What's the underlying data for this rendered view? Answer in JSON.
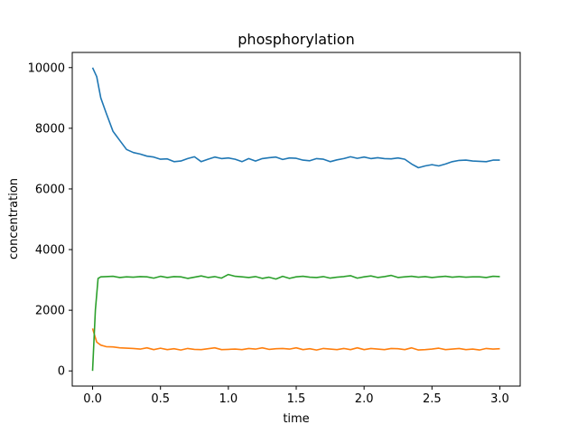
{
  "chart_data": {
    "type": "line",
    "title": "phosphorylation",
    "xlabel": "time",
    "ylabel": "concentration",
    "xlim": [
      -0.15,
      3.15
    ],
    "ylim": [
      -500,
      10500
    ],
    "xticks": [
      0.0,
      0.5,
      1.0,
      1.5,
      2.0,
      2.5,
      3.0
    ],
    "xtick_labels": [
      "0.0",
      "0.5",
      "1.0",
      "1.5",
      "2.0",
      "2.5",
      "3.0"
    ],
    "yticks": [
      0,
      2000,
      4000,
      6000,
      8000,
      10000
    ],
    "ytick_labels": [
      "0",
      "2000",
      "4000",
      "6000",
      "8000",
      "10000"
    ],
    "grid": false,
    "series": [
      {
        "color": "#1f77b4",
        "x": [
          0.0,
          0.03,
          0.06,
          0.1,
          0.15,
          0.2,
          0.25,
          0.3,
          0.35,
          0.4,
          0.45,
          0.5,
          0.55,
          0.6,
          0.65,
          0.7,
          0.75,
          0.8,
          0.85,
          0.9,
          0.95,
          1.0,
          1.05,
          1.1,
          1.15,
          1.2,
          1.25,
          1.3,
          1.35,
          1.4,
          1.45,
          1.5,
          1.55,
          1.6,
          1.65,
          1.7,
          1.75,
          1.8,
          1.85,
          1.9,
          1.95,
          2.0,
          2.05,
          2.1,
          2.15,
          2.2,
          2.25,
          2.3,
          2.35,
          2.4,
          2.45,
          2.5,
          2.55,
          2.6,
          2.65,
          2.7,
          2.75,
          2.8,
          2.85,
          2.9,
          2.95,
          3.0
        ],
        "y": [
          10000,
          9700,
          9000,
          8500,
          7900,
          7600,
          7300,
          7200,
          7150,
          7080,
          7050,
          6980,
          6990,
          6900,
          6920,
          7000,
          7060,
          6900,
          6980,
          7050,
          7000,
          7020,
          6980,
          6900,
          7000,
          6920,
          7000,
          7030,
          7050,
          6970,
          7020,
          7010,
          6950,
          6930,
          7000,
          6980,
          6900,
          6960,
          7000,
          7060,
          7010,
          7050,
          7000,
          7030,
          7000,
          6990,
          7020,
          6980,
          6820,
          6700,
          6760,
          6800,
          6760,
          6820,
          6900,
          6940,
          6950,
          6920,
          6910,
          6900,
          6950,
          6950
        ]
      },
      {
        "color": "#ff7f0e",
        "x": [
          0.0,
          0.03,
          0.06,
          0.1,
          0.15,
          0.2,
          0.25,
          0.3,
          0.35,
          0.4,
          0.45,
          0.5,
          0.55,
          0.6,
          0.65,
          0.7,
          0.75,
          0.8,
          0.85,
          0.9,
          0.95,
          1.0,
          1.05,
          1.1,
          1.15,
          1.2,
          1.25,
          1.3,
          1.35,
          1.4,
          1.45,
          1.5,
          1.55,
          1.6,
          1.65,
          1.7,
          1.75,
          1.8,
          1.85,
          1.9,
          1.95,
          2.0,
          2.05,
          2.1,
          2.15,
          2.2,
          2.25,
          2.3,
          2.35,
          2.4,
          2.45,
          2.5,
          2.55,
          2.6,
          2.65,
          2.7,
          2.75,
          2.8,
          2.85,
          2.9,
          2.95,
          3.0
        ],
        "y": [
          1400,
          950,
          850,
          800,
          790,
          760,
          750,
          740,
          720,
          760,
          700,
          750,
          700,
          730,
          690,
          740,
          710,
          700,
          730,
          760,
          700,
          710,
          720,
          700,
          740,
          720,
          760,
          710,
          730,
          740,
          720,
          760,
          700,
          730,
          690,
          740,
          720,
          700,
          740,
          700,
          760,
          700,
          740,
          720,
          700,
          740,
          730,
          700,
          760,
          690,
          700,
          720,
          750,
          700,
          720,
          740,
          700,
          720,
          690,
          740,
          720,
          730
        ]
      },
      {
        "color": "#2ca02c",
        "x": [
          0.0,
          0.02,
          0.04,
          0.06,
          0.1,
          0.15,
          0.2,
          0.25,
          0.3,
          0.35,
          0.4,
          0.45,
          0.5,
          0.55,
          0.6,
          0.65,
          0.7,
          0.75,
          0.8,
          0.85,
          0.9,
          0.95,
          1.0,
          1.05,
          1.1,
          1.15,
          1.2,
          1.25,
          1.3,
          1.35,
          1.4,
          1.45,
          1.5,
          1.55,
          1.6,
          1.65,
          1.7,
          1.75,
          1.8,
          1.85,
          1.9,
          1.95,
          2.0,
          2.05,
          2.1,
          2.15,
          2.2,
          2.25,
          2.3,
          2.35,
          2.4,
          2.45,
          2.5,
          2.55,
          2.6,
          2.65,
          2.7,
          2.75,
          2.8,
          2.85,
          2.9,
          2.95,
          3.0
        ],
        "y": [
          0,
          2000,
          3050,
          3100,
          3110,
          3120,
          3080,
          3100,
          3090,
          3110,
          3100,
          3060,
          3120,
          3080,
          3110,
          3100,
          3050,
          3090,
          3130,
          3080,
          3110,
          3060,
          3180,
          3120,
          3100,
          3080,
          3110,
          3050,
          3090,
          3030,
          3120,
          3050,
          3100,
          3120,
          3090,
          3080,
          3110,
          3060,
          3090,
          3110,
          3140,
          3060,
          3100,
          3130,
          3080,
          3110,
          3150,
          3080,
          3100,
          3120,
          3090,
          3110,
          3080,
          3100,
          3120,
          3090,
          3110,
          3090,
          3100,
          3100,
          3080,
          3120,
          3110
        ]
      }
    ]
  }
}
